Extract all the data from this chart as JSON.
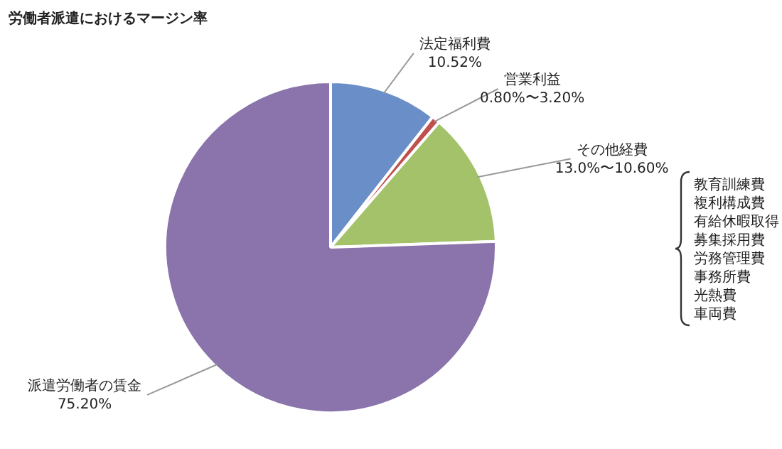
{
  "chart_data": {
    "type": "pie",
    "title": "労働者派遣におけるマージン率",
    "categories": [
      "法定福利費",
      "営業利益",
      "その他経費",
      "派遣労働者の賃金"
    ],
    "values": [
      10.52,
      0.8,
      13.0,
      75.2
    ],
    "value_labels": [
      "10.52%",
      "0.80%〜3.20%",
      "13.0%〜10.60%",
      "75.20%"
    ],
    "colors": [
      "#6a8fc8",
      "#c0504d",
      "#a3c26a",
      "#8a74ab"
    ],
    "annotations": [
      "教育訓練費",
      "複利構成費",
      "有給休暇取得",
      "募集採用費",
      "労務管理費",
      "事務所費",
      "光熱費",
      "車両費"
    ],
    "legend": false
  }
}
